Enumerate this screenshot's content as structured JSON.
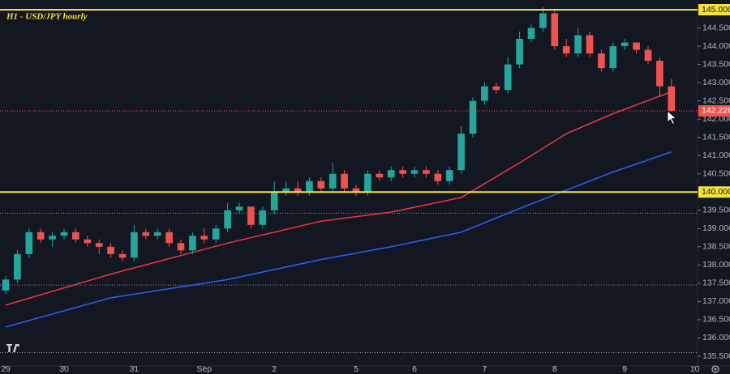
{
  "chart_data": {
    "type": "candlestick",
    "title": "H1 - USD/JPY hourly",
    "x": [
      0,
      1,
      2,
      3,
      4,
      5,
      6,
      7,
      8,
      9,
      10,
      11,
      12,
      13,
      14,
      15,
      16,
      17,
      18,
      19,
      20,
      21,
      22,
      23,
      24,
      25,
      26,
      27,
      28,
      29,
      30,
      31,
      32,
      33,
      34,
      35,
      36,
      37,
      38,
      39,
      40,
      41,
      42,
      43,
      44,
      45,
      46,
      47,
      48,
      49,
      50,
      51,
      52,
      53,
      54,
      55,
      56,
      57
    ],
    "open": [
      137.3,
      137.6,
      138.3,
      138.9,
      138.7,
      138.8,
      138.9,
      138.7,
      138.6,
      138.5,
      138.3,
      138.2,
      138.9,
      138.8,
      138.9,
      138.6,
      138.4,
      138.8,
      138.7,
      139.0,
      139.5,
      139.6,
      139.1,
      139.5,
      140.0,
      140.1,
      140.0,
      140.3,
      140.1,
      140.5,
      140.1,
      140.0,
      140.5,
      140.4,
      140.6,
      140.5,
      140.6,
      140.5,
      140.3,
      140.6,
      141.6,
      142.5,
      142.9,
      142.8,
      143.5,
      144.2,
      144.5,
      144.9,
      144.0,
      143.8,
      144.3,
      143.8,
      143.4,
      144.0,
      144.1,
      143.9,
      143.6,
      142.9
    ],
    "high": [
      137.7,
      138.4,
      139.0,
      139.0,
      138.9,
      139.0,
      139.0,
      138.8,
      138.7,
      138.6,
      138.4,
      139.1,
      139.0,
      139.0,
      139.0,
      138.7,
      138.9,
      139.0,
      139.1,
      139.7,
      139.7,
      139.6,
      139.6,
      140.3,
      140.3,
      140.3,
      140.4,
      140.4,
      140.8,
      140.6,
      140.2,
      140.6,
      140.6,
      140.7,
      140.7,
      140.7,
      140.7,
      140.6,
      140.7,
      141.8,
      142.6,
      143.0,
      143.0,
      143.7,
      144.4,
      144.6,
      145.07,
      145.0,
      144.2,
      144.5,
      144.4,
      143.9,
      144.1,
      144.2,
      144.1,
      144.0,
      143.7,
      143.1
    ],
    "low": [
      137.2,
      137.5,
      138.2,
      138.6,
      138.5,
      138.7,
      138.6,
      138.5,
      138.3,
      138.2,
      138.1,
      138.1,
      138.7,
      138.7,
      138.5,
      138.3,
      138.3,
      138.6,
      138.6,
      138.9,
      139.4,
      139.0,
      139.0,
      139.4,
      139.9,
      139.9,
      139.9,
      140.0,
      140.0,
      140.0,
      139.9,
      139.9,
      140.3,
      140.3,
      140.4,
      140.4,
      140.4,
      140.2,
      140.2,
      140.5,
      141.5,
      142.4,
      142.7,
      142.7,
      143.4,
      144.1,
      144.4,
      143.9,
      143.7,
      143.7,
      143.7,
      143.3,
      143.3,
      143.9,
      143.8,
      143.5,
      142.6,
      142.2
    ],
    "close": [
      137.6,
      138.3,
      138.9,
      138.7,
      138.8,
      138.9,
      138.7,
      138.6,
      138.5,
      138.3,
      138.2,
      138.9,
      138.8,
      138.9,
      138.6,
      138.4,
      138.8,
      138.7,
      139.0,
      139.5,
      139.6,
      139.1,
      139.5,
      140.0,
      140.1,
      140.0,
      140.3,
      140.1,
      140.5,
      140.1,
      140.0,
      140.5,
      140.4,
      140.6,
      140.5,
      140.6,
      140.5,
      140.3,
      140.6,
      141.6,
      142.5,
      142.9,
      142.8,
      143.5,
      144.2,
      144.5,
      144.9,
      144.0,
      143.8,
      144.3,
      143.8,
      143.4,
      144.0,
      144.1,
      143.9,
      143.6,
      142.9,
      142.226
    ],
    "up_color": "#26a69a",
    "down_color": "#ef5350",
    "series": [
      {
        "color": "#f23645",
        "x": [
          0,
          9,
          19,
          27,
          33,
          39,
          44,
          48,
          52,
          57
        ],
        "values": [
          136.9,
          137.75,
          138.6,
          139.2,
          139.45,
          139.85,
          140.8,
          141.6,
          142.15,
          142.75
        ]
      },
      {
        "color": "#2962ff",
        "x": [
          0,
          9,
          19,
          27,
          33,
          39,
          44,
          48,
          52,
          57
        ],
        "values": [
          136.3,
          137.1,
          137.6,
          138.15,
          138.5,
          138.9,
          139.55,
          140.05,
          140.55,
          141.1
        ]
      }
    ],
    "xlim": [
      -0.486,
      59.236
    ],
    "ylim": [
      135.233,
      145.266
    ],
    "xticks": [
      {
        "value": 0,
        "label": "29"
      },
      {
        "value": 5,
        "label": "30"
      },
      {
        "value": 11,
        "label": "31"
      },
      {
        "value": 17,
        "label": "Sep"
      },
      {
        "value": 23,
        "label": "2"
      },
      {
        "value": 30,
        "label": "5"
      },
      {
        "value": 35,
        "label": "6"
      },
      {
        "value": 41,
        "label": "7"
      },
      {
        "value": 47,
        "label": "8"
      },
      {
        "value": 53,
        "label": "9"
      },
      {
        "value": 59,
        "label": "10"
      }
    ],
    "yticks": [
      {
        "value": 135.5,
        "label": "135.500"
      },
      {
        "value": 136,
        "label": "136.000"
      },
      {
        "value": 136.5,
        "label": "136.500"
      },
      {
        "value": 137,
        "label": "137.000"
      },
      {
        "value": 137.5,
        "label": "137.500"
      },
      {
        "value": 138,
        "label": "138.000"
      },
      {
        "value": 138.5,
        "label": "138.500"
      },
      {
        "value": 139,
        "label": "139.000"
      },
      {
        "value": 139.5,
        "label": "139.500"
      },
      {
        "value": 140.5,
        "label": "140.500"
      },
      {
        "value": 141,
        "label": "141.000"
      },
      {
        "value": 141.5,
        "label": "141.500"
      },
      {
        "value": 142,
        "label": "142.000"
      },
      {
        "value": 142.5,
        "label": "142.500"
      },
      {
        "value": 143,
        "label": "143.000"
      },
      {
        "value": 143.5,
        "label": "143.500"
      },
      {
        "value": 144,
        "label": "144.000"
      },
      {
        "value": 144.5,
        "label": "144.500"
      }
    ],
    "hlines": [
      {
        "value": 145,
        "label": "145.000"
      },
      {
        "value": 140,
        "label": "140.000"
      }
    ],
    "hline_color": "#f5e33c",
    "levels": [
      139.42,
      137.45,
      135.6
    ],
    "current_price": {
      "value": 142.226,
      "label": "142.226"
    }
  }
}
